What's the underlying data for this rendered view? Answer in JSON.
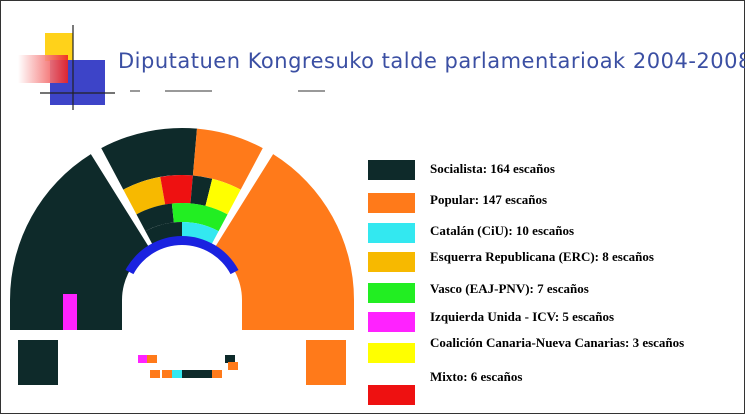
{
  "header": {
    "title": "Diputatuen Kongresuko talde parlamentarioak 2004-2008"
  },
  "legend": [
    {
      "label": "Socialista:  164 escaños",
      "color": "#0e2a2a"
    },
    {
      "label": "Popular:  147 escaños",
      "color": "#ff7a1a"
    },
    {
      "label": "Catalán (CiU):  10 escaños",
      "color": "#33e8f0"
    },
    {
      "label": "Esquerra Republicana (ERC):  8 escaños",
      "color": "#f7b900"
    },
    {
      "label": "Vasco (EAJ-PNV):  7 escaños",
      "color": "#22ee22"
    },
    {
      "label": "Izquierda Unida - ICV:  5 escaños",
      "color": "#ff22ff"
    },
    {
      "label": "Coalición Canaria-Nueva Canarias:  3 escaños",
      "color": "#ffff00"
    },
    {
      "label": "Mixto:  6 escaños",
      "color": "#ee1111"
    }
  ]
}
